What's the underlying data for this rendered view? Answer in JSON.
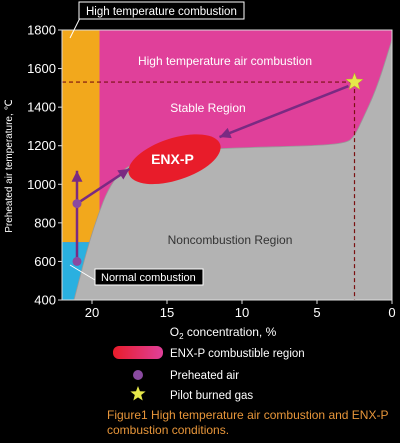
{
  "chart_data": {
    "type": "area",
    "xlabel": "O2 concentration, %",
    "ylabel": "Preheated air temperature, ℃",
    "xlim": [
      22,
      0
    ],
    "ylim": [
      400,
      1800
    ],
    "x_ticks": [
      "20",
      "15",
      "10",
      "5",
      "0"
    ],
    "y_ticks": [
      "400",
      "600",
      "800",
      "1000",
      "1200",
      "1400",
      "1600",
      "1800"
    ],
    "colors": {
      "high_temp_region": "#e0409a",
      "high_temp_combustion_band": "#f2a81c",
      "normal_combustion_band": "#2ab0e0",
      "noncombustion": "#b3b3b3",
      "enxp": "#e81c2a",
      "arrow": "#7a2a82",
      "star": "#e6e84a"
    },
    "regions": {
      "high_temp_air": "High temperature air combustion",
      "stable": "Stable Region",
      "noncombustion": "Noncombustion Region",
      "high_temp_combustion": "High temperature combustion",
      "normal_combustion": "Normal combustion",
      "enxp": "ENX-P"
    },
    "boundary_curve": [
      [
        21.2,
        400
      ],
      [
        20,
        760
      ],
      [
        18.5,
        1060
      ],
      [
        16,
        1150
      ],
      [
        13,
        1180
      ],
      [
        10,
        1190
      ],
      [
        5,
        1200
      ],
      [
        3,
        1215
      ],
      [
        2.5,
        1250
      ],
      [
        2,
        1330
      ],
      [
        1,
        1500
      ],
      [
        0,
        1750
      ]
    ],
    "preheated_air_points": [
      [
        21,
        600
      ],
      [
        21,
        900
      ]
    ],
    "pilot_burned_gas": {
      "x": 2.5,
      "y": 1530
    },
    "legend": [
      {
        "label": "ENX-P combustible region",
        "marker": "swatch"
      },
      {
        "label": "Preheated air",
        "marker": "circle"
      },
      {
        "label": "Pilot burned gas",
        "marker": "star"
      }
    ]
  },
  "caption": "Figure1 High temperature air combustion and ENX-P combustion conditions."
}
